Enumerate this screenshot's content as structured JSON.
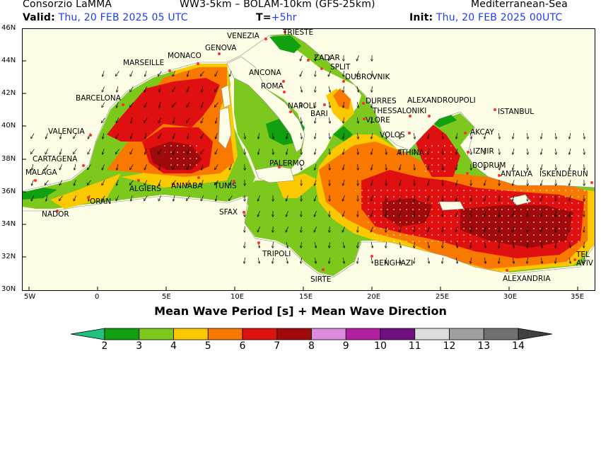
{
  "header": {
    "org": "Consorzio LaMMA",
    "model": "WW3-5km – BOLAM-10km (GFS-25km)",
    "region": "Mediterranean-Sea",
    "valid_label": "Valid:",
    "valid_value": "Thu, 20 FEB 2025  05 UTC",
    "t_label": "T=",
    "t_value": "+5hr",
    "init_label": "Init:",
    "init_value": "Thu, 20 FEB 2025 00UTC"
  },
  "map": {
    "title": "Mean Wave Period [s] + Mean Wave Direction",
    "lon_ticks": [
      "5W",
      "0",
      "5E",
      "10E",
      "15E",
      "20E",
      "25E",
      "30E",
      "35E"
    ],
    "lat_ticks": [
      "46N",
      "44N",
      "42N",
      "40N",
      "38N",
      "36N",
      "34N",
      "32N",
      "30N"
    ],
    "colors": {
      "land": "#fdfde6",
      "p2_3": "#10a010",
      "p3_4": "#7cc81c",
      "p4_5": "#fcc800",
      "p5_6": "#f87800",
      "p6_7": "#e01010",
      "p7_8": "#a00a0a",
      "p8_9": "#dc8cdc",
      "p9_10": "#b020a0",
      "p10_11": "#701080",
      "p11_12": "#dcdcdc",
      "p12_13": "#a0a0a0",
      "p13_14": "#707070"
    },
    "cities": [
      "VENEZIA",
      "TRIESTE",
      "MONACO",
      "GENOVA",
      "MARSEILLE",
      "ZADAR",
      "SPLIT",
      "ANCONA",
      "DUBROVNIK",
      "ROMA",
      "BARCELONA",
      "DURRES",
      "ALEXANDROUPOLI",
      "NAPOLI",
      "BARI",
      "THESSALONIKI",
      "ISTANBUL",
      "VLORE",
      "VALENCIA",
      "VOLOS",
      "AKCAY",
      "ATHINA",
      "IZMIR",
      "CARTAGENA",
      "PALERMO",
      "BODRUM",
      "ANTALYA",
      "ISKENDERUN",
      "MALAGA",
      "ALGIERS",
      "ANNABA",
      "TUNIS",
      "ORAN",
      "NADOR",
      "SFAX",
      "TRIPOLI",
      "BENGHAZI",
      "TEL AVIV",
      "SIRTE",
      "ALEXANDRIA"
    ]
  },
  "colorbar": {
    "labels": [
      "2",
      "3",
      "4",
      "5",
      "6",
      "7",
      "8",
      "9",
      "10",
      "11",
      "12",
      "13",
      "14"
    ]
  }
}
